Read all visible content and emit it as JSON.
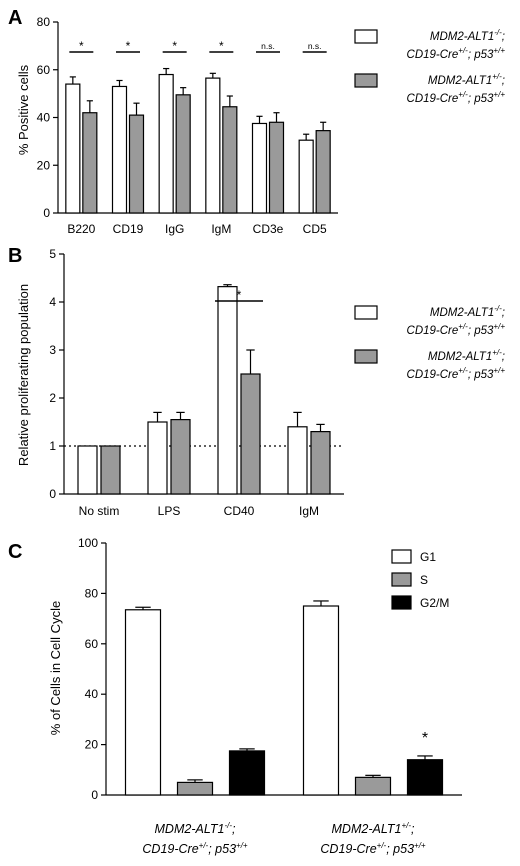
{
  "figure": {
    "colors": {
      "white_bar": "#ffffff",
      "gray_bar": "#9a9a9a",
      "black_bar": "#000000",
      "axis": "#000000"
    }
  },
  "chart_data": [
    {
      "id": "A",
      "panel_label": "A",
      "type": "bar",
      "ylabel": "% Positive cells",
      "ylim": [
        0,
        80
      ],
      "yticks": [
        0,
        20,
        40,
        60,
        80
      ],
      "categories": [
        "B220",
        "CD19",
        "IgG",
        "IgM",
        "CD3e",
        "CD5"
      ],
      "series": [
        {
          "name": "MDM2-ALT1-/-; CD19-Cre+/-; p53+/+",
          "values": [
            54,
            53,
            58,
            56.5,
            37.5,
            30.5
          ],
          "errors": [
            3,
            2.5,
            2.5,
            2,
            3,
            2.5
          ],
          "color": "#ffffff"
        },
        {
          "name": "MDM2-ALT1+/-; CD19-Cre+/-; p53+/+",
          "values": [
            42,
            41,
            49.5,
            44.5,
            38,
            34.5
          ],
          "errors": [
            5,
            5,
            3,
            4.5,
            4,
            3.5
          ],
          "color": "#9a9a9a"
        }
      ],
      "significance": [
        "*",
        "*",
        "*",
        "*",
        "n.s.",
        "n.s."
      ],
      "legend_position": "right"
    },
    {
      "id": "B",
      "panel_label": "B",
      "type": "bar",
      "ylabel": "Relative proliferating population",
      "ylim": [
        0,
        5
      ],
      "yticks": [
        0,
        1,
        2,
        3,
        4,
        5
      ],
      "categories": [
        "No stim",
        "LPS",
        "CD40",
        "IgM"
      ],
      "series": [
        {
          "name": "MDM2-ALT1-/-; CD19-Cre+/-; p53+/+",
          "values": [
            1.0,
            1.5,
            4.32,
            1.4
          ],
          "errors": [
            0,
            0.2,
            0.04,
            0.3
          ],
          "color": "#ffffff"
        },
        {
          "name": "MDM2-ALT1+/-; CD19-Cre+/-; p53+/+",
          "values": [
            1.0,
            1.55,
            2.5,
            1.3
          ],
          "errors": [
            0,
            0.15,
            0.5,
            0.15
          ],
          "color": "#9a9a9a"
        }
      ],
      "reference_line": 1,
      "significance_label": "*",
      "legend_position": "right"
    },
    {
      "id": "C",
      "panel_label": "C",
      "type": "bar",
      "ylabel": "% of Cells in Cell Cycle",
      "ylim": [
        0,
        100
      ],
      "yticks": [
        0,
        20,
        40,
        60,
        80,
        100
      ],
      "groups": [
        {
          "line1": "MDM2-ALT1",
          "line1_sup": "-/-",
          "line1_suffix": ";",
          "cre": "+/-",
          "p53": "+/+"
        },
        {
          "line1": "MDM2-ALT1",
          "line1_sup": "+/-",
          "line1_suffix": ";",
          "cre": "+/-",
          "p53": "+/+"
        }
      ],
      "series": [
        {
          "name": "G1",
          "values": [
            73.5,
            75
          ],
          "errors": [
            1,
            2
          ],
          "color": "#ffffff"
        },
        {
          "name": "S",
          "values": [
            5,
            7
          ],
          "errors": [
            1,
            0.8
          ],
          "color": "#9a9a9a"
        },
        {
          "name": "G2/M",
          "values": [
            17.5,
            14
          ],
          "errors": [
            0.8,
            1.5
          ],
          "color": "#000000"
        }
      ],
      "significance_label": "*",
      "legend_position": "top-right"
    }
  ]
}
